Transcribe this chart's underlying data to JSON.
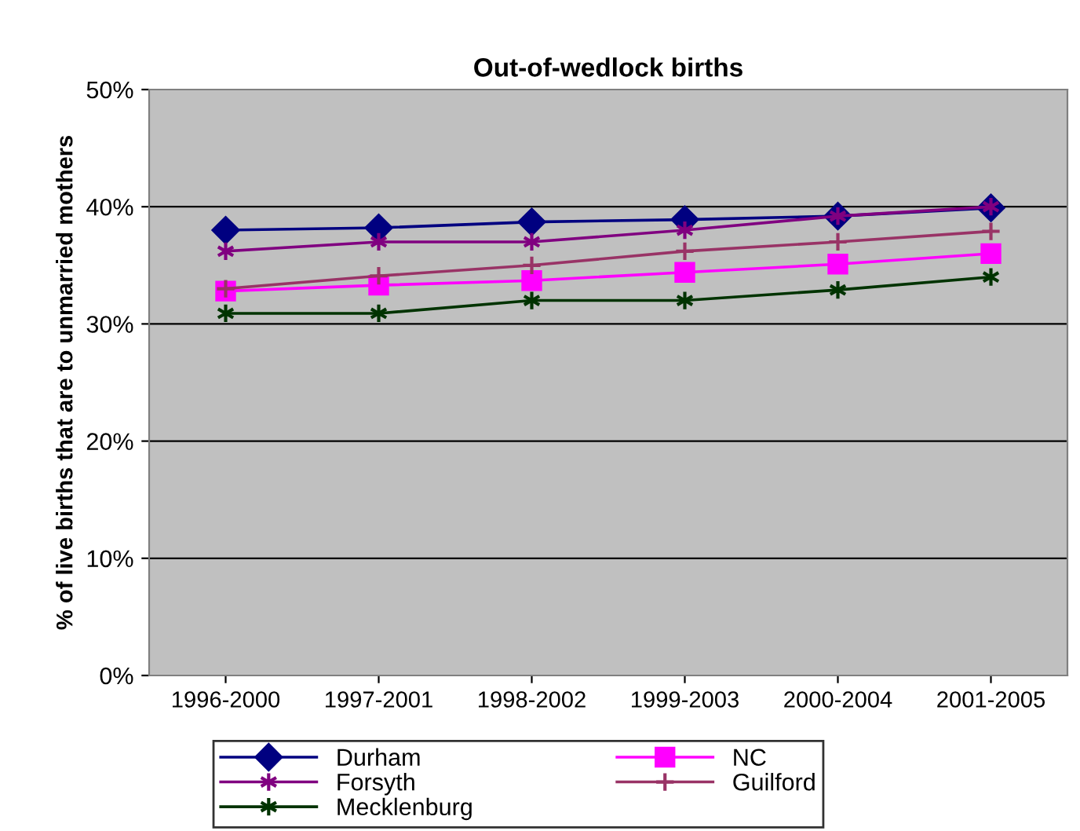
{
  "chart_data": {
    "type": "line",
    "title": "Out-of-wedlock births",
    "ylabel": "% of live births that are to unmarried mothers",
    "categories": [
      "1996-2000",
      "1997-2001",
      "1998-2002",
      "1999-2003",
      "2000-2004",
      "2001-2005"
    ],
    "series": [
      {
        "name": "Durham",
        "color": "#000080",
        "marker": "diamond",
        "values": [
          38.0,
          38.2,
          38.7,
          38.9,
          39.2,
          39.9
        ]
      },
      {
        "name": "NC",
        "color": "#ff00ff",
        "marker": "square",
        "values": [
          32.8,
          33.3,
          33.7,
          34.4,
          35.1,
          36.0
        ]
      },
      {
        "name": "Forsyth",
        "color": "#800080",
        "marker": "cross",
        "values": [
          36.2,
          37.0,
          37.0,
          38.0,
          39.2,
          40.0
        ]
      },
      {
        "name": "Guilford",
        "color": "#993366",
        "marker": "plus",
        "values": [
          33.0,
          34.1,
          35.0,
          36.2,
          37.0,
          37.9
        ]
      },
      {
        "name": "Mecklenburg",
        "color": "#003300",
        "marker": "cross",
        "values": [
          30.9,
          30.9,
          32.0,
          32.0,
          32.9,
          34.0
        ]
      }
    ],
    "ylim": [
      0,
      50
    ],
    "yticks": [
      {
        "value": 0,
        "label": "0%"
      },
      {
        "value": 10,
        "label": "10%"
      },
      {
        "value": 20,
        "label": "20%"
      },
      {
        "value": 30,
        "label": "30%"
      },
      {
        "value": 40,
        "label": "40%"
      },
      {
        "value": 50,
        "label": "50%"
      }
    ],
    "grid": "y",
    "legend": "bottom"
  }
}
